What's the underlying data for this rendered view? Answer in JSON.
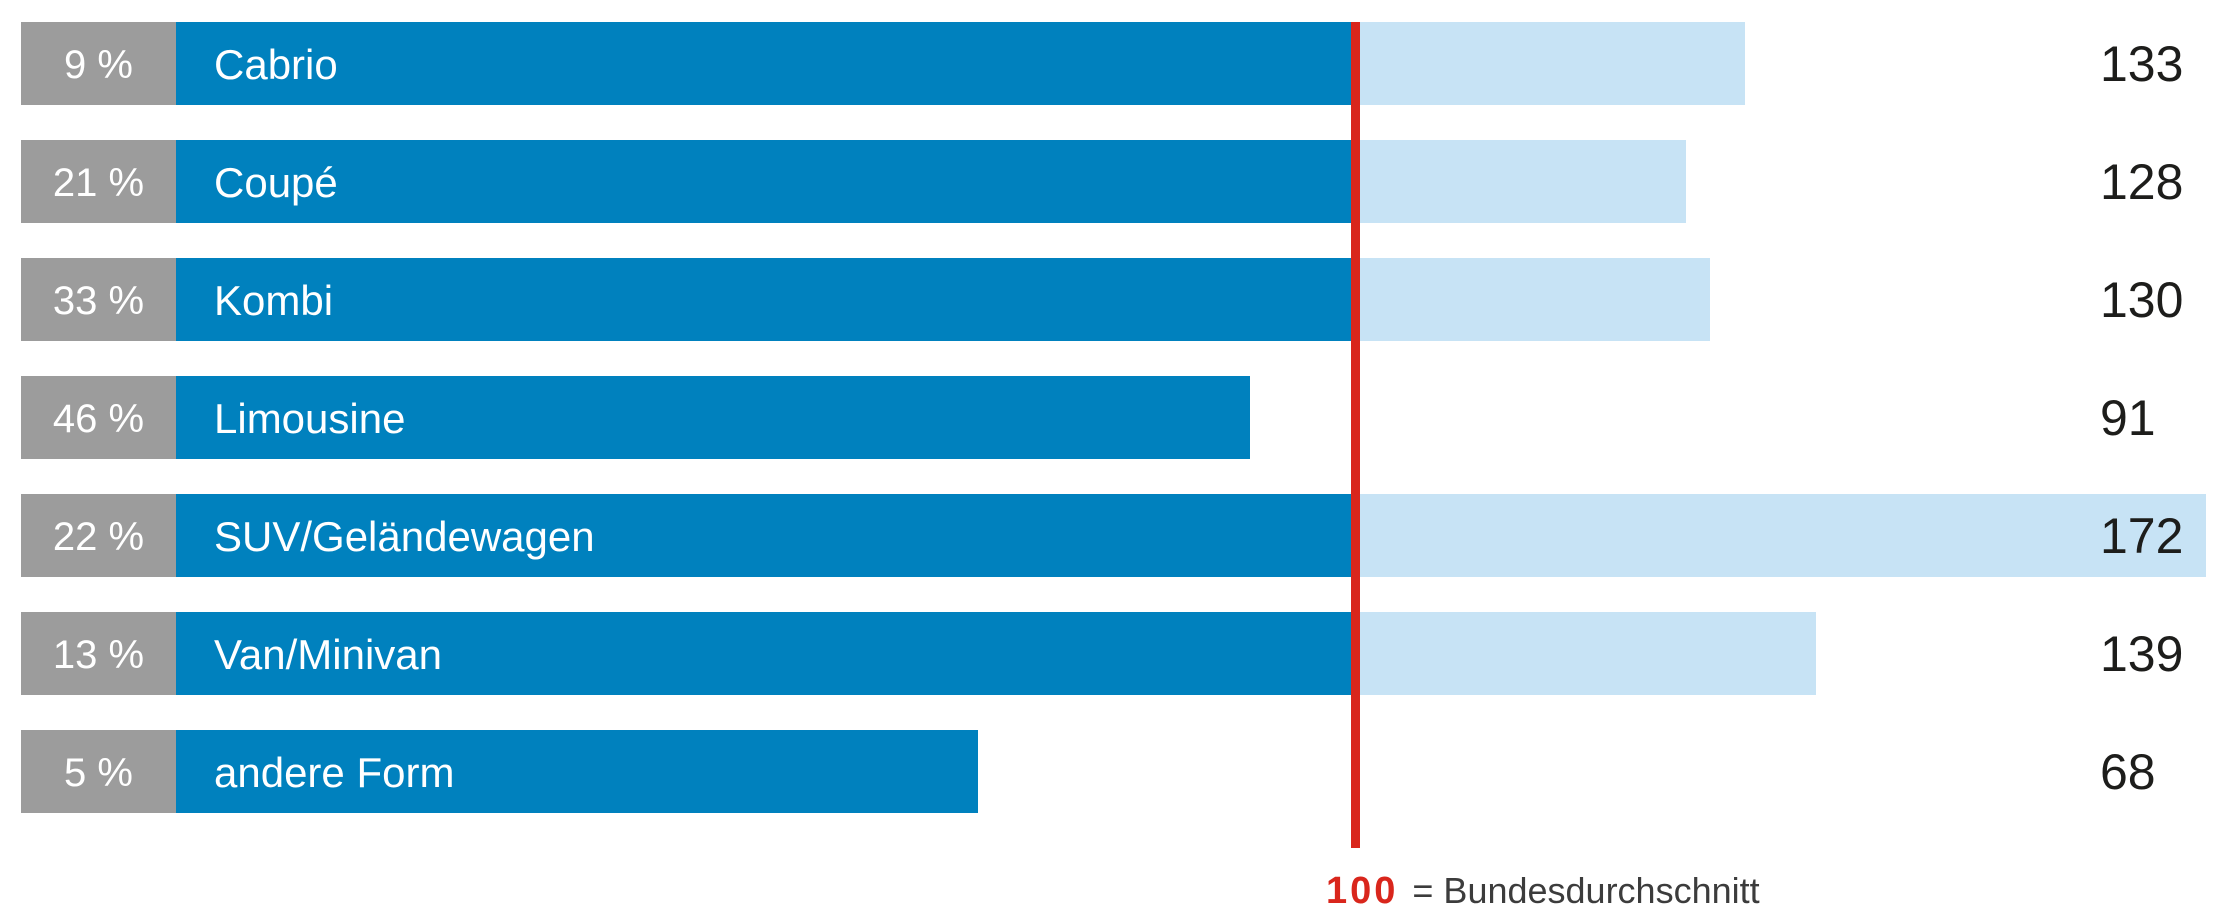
{
  "colors": {
    "bar_dark": "#0081BE",
    "bar_light": "#C7E3F5",
    "share_box": "#9C9C9C",
    "reference_line": "#D9261C",
    "value_text": "#1D1D1B",
    "legend_text": "#3C3C3C",
    "label_text": "#FFFFFF"
  },
  "rows": [
    {
      "share_label": "9 %",
      "category": "Cabrio",
      "value": 133,
      "value_label": "133"
    },
    {
      "share_label": "21 %",
      "category": "Coupé",
      "value": 128,
      "value_label": "128"
    },
    {
      "share_label": "33 %",
      "category": "Kombi",
      "value": 130,
      "value_label": "130"
    },
    {
      "share_label": "46 %",
      "category": "Limousine",
      "value": 91,
      "value_label": "91"
    },
    {
      "share_label": "22 %",
      "category": "SUV/Geländewagen",
      "value": 172,
      "value_label": "172"
    },
    {
      "share_label": "13 %",
      "category": "Van/Minivan",
      "value": 139,
      "value_label": "139"
    },
    {
      "share_label": "5 %",
      "category": "andere Form",
      "value": 68,
      "value_label": "68"
    }
  ],
  "legend": {
    "reference_value": "100",
    "reference_suffix": "= Bundesdurchschnitt"
  },
  "chart_data": {
    "type": "bar",
    "orientation": "horizontal",
    "categories": [
      "Cabrio",
      "Coupé",
      "Kombi",
      "Limousine",
      "SUV/Geländewagen",
      "Van/Minivan",
      "andere Form"
    ],
    "series": [
      {
        "name": "Anteil",
        "unit": "%",
        "values": [
          9,
          21,
          33,
          46,
          22,
          13,
          5
        ]
      },
      {
        "name": "Index",
        "unit": "Index (100 = Bundesdurchschnitt)",
        "values": [
          133,
          128,
          130,
          91,
          172,
          139,
          68
        ]
      }
    ],
    "reference_line": {
      "value": 100,
      "label": "100 = Bundesdurchschnitt",
      "color": "#D9261C"
    },
    "xlim": [
      0,
      174
    ],
    "grid": false,
    "legend_position": "bottom",
    "bar_color_below_reference": "#0081BE",
    "bar_color_above_reference": "#C7E3F5",
    "title": "",
    "xlabel": "",
    "ylabel": ""
  }
}
